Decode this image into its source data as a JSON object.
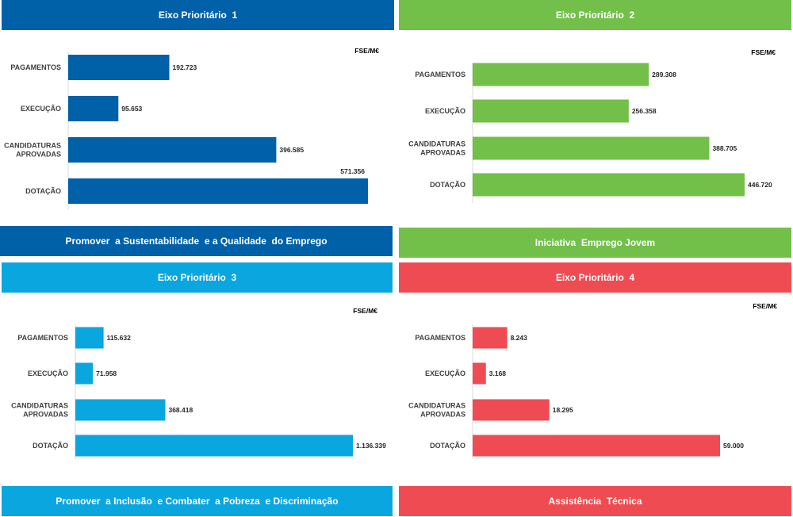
{
  "units_label": "FSE/M€",
  "categories": [
    "PAGAMENTOS",
    "EXECUÇÃO",
    "CANDIDATURAS\nAPROVADAS",
    "DOTAÇÃO"
  ],
  "panels": [
    {
      "header": "Eixo Prioritário  1",
      "footer": "Promover  a Sustentabilidade  e a Qualidade  do Emprego",
      "color": "#0060A8"
    },
    {
      "header": "Eixo Prioritário  2",
      "footer": "Iniciativa  Emprego Jovem",
      "color": "#72C04A"
    },
    {
      "header": "Eixo Prioritário  3",
      "footer": "Promover  a Inclusão  e Combater  a Pobreza  e Discriminação",
      "color": "#0AA6DF"
    },
    {
      "header": "Eixo Prioritário  4",
      "footer": "Assistência  Técnica",
      "color": "#EE4C52"
    }
  ],
  "chart_data": [
    {
      "type": "bar",
      "orientation": "horizontal",
      "title": "Eixo Prioritário  1",
      "unit": "FSE/M€",
      "categories": [
        "PAGAMENTOS",
        "EXECUÇÃO",
        "CANDIDATURAS APROVADAS",
        "DOTAÇÃO"
      ],
      "values": [
        192.723,
        95.653,
        396.585,
        571.356
      ],
      "labels": [
        "192.723",
        "95.653",
        "396.585",
        "571.356"
      ],
      "xlim": [
        0,
        571.356
      ]
    },
    {
      "type": "bar",
      "orientation": "horizontal",
      "title": "Eixo Prioritário  2",
      "unit": "FSE/M€",
      "categories": [
        "PAGAMENTOS",
        "EXECUÇÃO",
        "CANDIDATURAS APROVADAS",
        "DOTAÇÃO"
      ],
      "values": [
        289.308,
        256.358,
        388.705,
        446.72
      ],
      "labels": [
        "289.308",
        "256.358",
        "388.705",
        "446.720"
      ],
      "xlim": [
        0,
        446.72
      ]
    },
    {
      "type": "bar",
      "orientation": "horizontal",
      "title": "Eixo Prioritário  3",
      "unit": "FSE/M€",
      "categories": [
        "PAGAMENTOS",
        "EXECUÇÃO",
        "CANDIDATURAS APROVADAS",
        "DOTAÇÃO"
      ],
      "values": [
        115.632,
        71.958,
        368.418,
        1136.339
      ],
      "labels": [
        "115.632",
        "71.958",
        "368.418",
        "1.136.339"
      ],
      "xlim": [
        0,
        1136.339
      ]
    },
    {
      "type": "bar",
      "orientation": "horizontal",
      "title": "Eixo Prioritário  4",
      "unit": "FSE/M€",
      "categories": [
        "PAGAMENTOS",
        "EXECUÇÃO",
        "CANDIDATURAS APROVADAS",
        "DOTAÇÃO"
      ],
      "values": [
        8.243,
        3.168,
        18.295,
        59.0
      ],
      "labels": [
        "8.243",
        "3.168",
        "18.295",
        "59.000"
      ],
      "xlim": [
        0,
        59.0
      ]
    }
  ]
}
